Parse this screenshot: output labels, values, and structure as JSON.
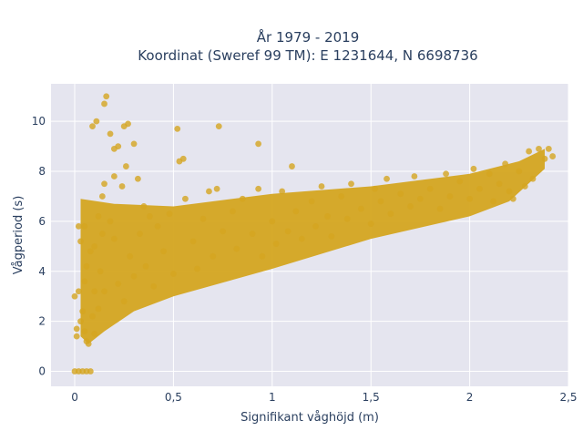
{
  "chart_data": {
    "type": "scatter",
    "title_line1": "År 1979 - 2019",
    "title_line2": "Koordinat (Sweref 99 TM): E 1231644, N 6698736",
    "xlabel": "Signifikant våghöjd (m)",
    "ylabel": "Vågperiod (s)",
    "xlim": [
      -0.12,
      2.5
    ],
    "ylim": [
      -0.6,
      11.5
    ],
    "x_ticks": [
      0,
      0.5,
      1,
      1.5,
      2,
      2.5
    ],
    "x_tick_labels": [
      "0",
      "0,5",
      "1",
      "1,5",
      "2",
      "2,5"
    ],
    "y_ticks": [
      0,
      2,
      4,
      6,
      8,
      10
    ],
    "y_tick_labels": [
      "0",
      "2",
      "4",
      "6",
      "8",
      "10"
    ],
    "grid": true,
    "legend": "none",
    "marker_color": "#d4a520",
    "plot_bg": "#e5e5ef",
    "points": [
      [
        0.0,
        0.0
      ],
      [
        0.02,
        0.0
      ],
      [
        0.04,
        0.0
      ],
      [
        0.06,
        0.0
      ],
      [
        0.08,
        0.0
      ],
      [
        0.01,
        1.4
      ],
      [
        0.01,
        1.7
      ],
      [
        0.0,
        3.0
      ],
      [
        0.02,
        3.2
      ],
      [
        0.03,
        2.0
      ],
      [
        0.05,
        1.6
      ],
      [
        0.06,
        1.2
      ],
      [
        0.07,
        1.1
      ],
      [
        0.04,
        2.4
      ],
      [
        0.05,
        3.6
      ],
      [
        0.06,
        4.2
      ],
      [
        0.03,
        5.2
      ],
      [
        0.05,
        5.8
      ],
      [
        0.02,
        5.8
      ],
      [
        0.08,
        4.8
      ],
      [
        0.09,
        2.2
      ],
      [
        0.1,
        1.5
      ],
      [
        0.1,
        3.2
      ],
      [
        0.1,
        5.0
      ],
      [
        0.12,
        6.2
      ],
      [
        0.12,
        2.5
      ],
      [
        0.13,
        4.0
      ],
      [
        0.14,
        7.0
      ],
      [
        0.14,
        5.5
      ],
      [
        0.15,
        3.2
      ],
      [
        0.15,
        7.5
      ],
      [
        0.16,
        11.0
      ],
      [
        0.15,
        10.7
      ],
      [
        0.09,
        9.8
      ],
      [
        0.11,
        10.0
      ],
      [
        0.18,
        9.5
      ],
      [
        0.2,
        8.9
      ],
      [
        0.22,
        9.0
      ],
      [
        0.25,
        9.8
      ],
      [
        0.27,
        9.9
      ],
      [
        0.3,
        9.1
      ],
      [
        0.26,
        8.2
      ],
      [
        0.2,
        7.8
      ],
      [
        0.24,
        7.4
      ],
      [
        0.32,
        7.7
      ],
      [
        0.35,
        6.6
      ],
      [
        0.38,
        6.2
      ],
      [
        0.18,
        6.0
      ],
      [
        0.2,
        5.3
      ],
      [
        0.22,
        3.5
      ],
      [
        0.25,
        2.8
      ],
      [
        0.28,
        4.6
      ],
      [
        0.3,
        3.8
      ],
      [
        0.33,
        5.5
      ],
      [
        0.36,
        4.2
      ],
      [
        0.4,
        3.4
      ],
      [
        0.42,
        5.8
      ],
      [
        0.45,
        4.8
      ],
      [
        0.48,
        6.3
      ],
      [
        0.5,
        3.9
      ],
      [
        0.52,
        9.7
      ],
      [
        0.55,
        8.5
      ],
      [
        0.53,
        8.4
      ],
      [
        0.56,
        6.9
      ],
      [
        0.6,
        5.2
      ],
      [
        0.62,
        4.1
      ],
      [
        0.65,
        6.1
      ],
      [
        0.68,
        7.2
      ],
      [
        0.7,
        4.6
      ],
      [
        0.72,
        7.3
      ],
      [
        0.73,
        9.8
      ],
      [
        0.75,
        5.6
      ],
      [
        0.8,
        6.4
      ],
      [
        0.82,
        4.9
      ],
      [
        0.85,
        6.9
      ],
      [
        0.9,
        5.5
      ],
      [
        0.93,
        7.3
      ],
      [
        0.95,
        4.6
      ],
      [
        0.93,
        9.1
      ],
      [
        1.0,
        6.0
      ],
      [
        1.02,
        5.1
      ],
      [
        1.05,
        7.2
      ],
      [
        1.08,
        5.6
      ],
      [
        1.1,
        8.2
      ],
      [
        1.12,
        6.4
      ],
      [
        1.15,
        5.3
      ],
      [
        1.2,
        6.8
      ],
      [
        1.22,
        5.8
      ],
      [
        1.25,
        7.4
      ],
      [
        1.28,
        6.2
      ],
      [
        1.3,
        5.4
      ],
      [
        1.35,
        7.0
      ],
      [
        1.38,
        6.1
      ],
      [
        1.4,
        7.5
      ],
      [
        1.45,
        6.5
      ],
      [
        1.5,
        5.9
      ],
      [
        1.52,
        7.3
      ],
      [
        1.55,
        6.8
      ],
      [
        1.58,
        7.7
      ],
      [
        1.6,
        6.3
      ],
      [
        1.65,
        7.1
      ],
      [
        1.7,
        6.6
      ],
      [
        1.72,
        7.8
      ],
      [
        1.75,
        6.9
      ],
      [
        1.8,
        7.3
      ],
      [
        1.85,
        6.5
      ],
      [
        1.88,
        7.9
      ],
      [
        1.9,
        7.0
      ],
      [
        1.95,
        7.6
      ],
      [
        2.0,
        6.9
      ],
      [
        2.02,
        8.1
      ],
      [
        2.05,
        7.3
      ],
      [
        2.1,
        7.9
      ],
      [
        2.12,
        6.8
      ],
      [
        2.15,
        7.5
      ],
      [
        2.18,
        8.3
      ],
      [
        2.2,
        7.2
      ],
      [
        2.22,
        6.9
      ],
      [
        2.25,
        8.0
      ],
      [
        2.28,
        7.4
      ],
      [
        2.3,
        8.8
      ],
      [
        2.32,
        7.7
      ],
      [
        2.35,
        8.9
      ],
      [
        2.38,
        8.5
      ],
      [
        2.4,
        8.9
      ],
      [
        2.42,
        8.6
      ]
    ]
  }
}
